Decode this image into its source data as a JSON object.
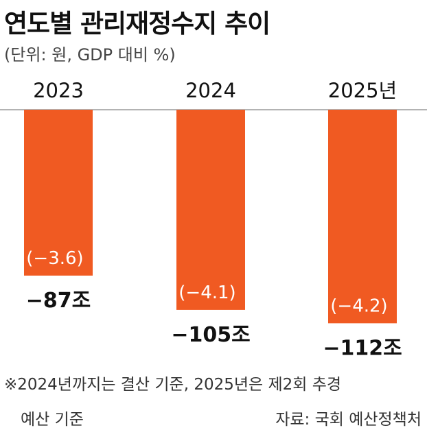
{
  "chart_data": {
    "type": "bar",
    "title": "연도별 관리재정수지 추이",
    "subtitle": "(단위: 원, GDP 대비 %)",
    "categories": [
      "2023",
      "2024",
      "2025년"
    ],
    "series": [
      {
        "values": [
          -87,
          -105,
          -112
        ]
      }
    ],
    "value_labels": [
      "−87조",
      "−105조",
      "−112조"
    ],
    "gdp_ratio": [
      -3.6,
      -4.1,
      -4.2
    ],
    "ratio_labels": [
      "(−3.6)",
      "(−4.1)",
      "(−4.2)"
    ],
    "bar_color": "#f05a22",
    "ylim": [
      -125,
      0
    ],
    "grid": false,
    "legend": "none"
  },
  "footnote": {
    "line1": "※2024년까지는 결산 기준, 2025년은 제2회 추경",
    "line2": "예산 기준"
  },
  "source": "자료: 국회 예산정책처"
}
